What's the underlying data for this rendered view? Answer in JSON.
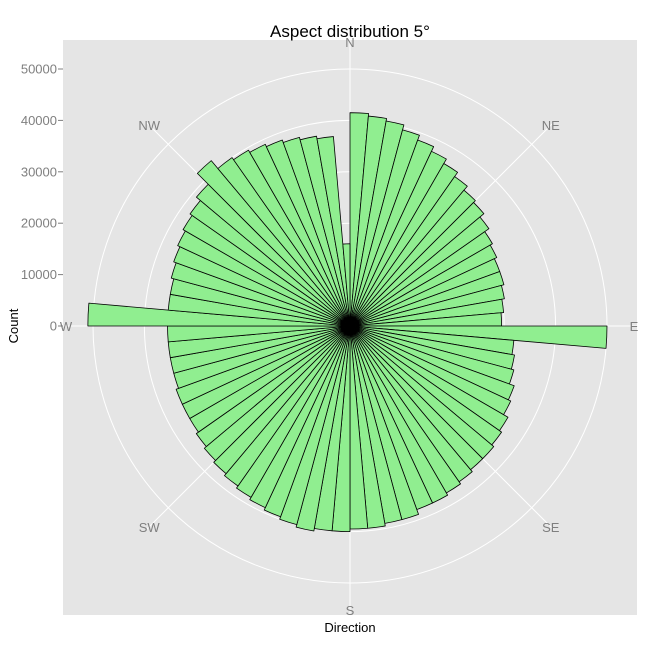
{
  "chart_data": {
    "type": "bar",
    "coord": "polar",
    "title": "Aspect distribution 5°",
    "xlabel": "Direction",
    "ylabel": "Count",
    "yticks": [
      0,
      10000,
      20000,
      30000,
      40000,
      50000
    ],
    "ytick_labels": [
      "0",
      "10000",
      "20000",
      "30000",
      "40000",
      "50000"
    ],
    "ylim": [
      0,
      56000
    ],
    "directions": [
      "N",
      "NE",
      "E",
      "SE",
      "S",
      "SW",
      "W",
      "NW"
    ],
    "direction_angles": [
      0,
      45,
      90,
      135,
      180,
      225,
      270,
      315
    ],
    "bin_width_deg": 5,
    "bin_starts_deg": [
      0,
      5,
      10,
      15,
      20,
      25,
      30,
      35,
      40,
      45,
      50,
      55,
      60,
      65,
      70,
      75,
      80,
      85,
      90,
      95,
      100,
      105,
      110,
      115,
      120,
      125,
      130,
      135,
      140,
      145,
      150,
      155,
      160,
      165,
      170,
      175,
      180,
      185,
      190,
      195,
      200,
      205,
      210,
      215,
      220,
      225,
      230,
      235,
      240,
      245,
      250,
      255,
      260,
      265,
      270,
      275,
      280,
      285,
      290,
      295,
      300,
      305,
      310,
      315,
      320,
      325,
      330,
      335,
      340,
      345,
      350,
      355
    ],
    "values": [
      41500,
      41000,
      40500,
      39500,
      38500,
      37500,
      36500,
      35500,
      34500,
      34000,
      33000,
      32000,
      31500,
      31000,
      31000,
      30500,
      30000,
      29500,
      50000,
      32000,
      32500,
      33000,
      34000,
      34500,
      35500,
      36000,
      36500,
      36500,
      37000,
      37500,
      38000,
      38000,
      39000,
      39000,
      39500,
      39500,
      40000,
      40000,
      40500,
      40000,
      39500,
      39000,
      38500,
      38000,
      37500,
      37000,
      36500,
      36000,
      36000,
      36000,
      35500,
      35500,
      35500,
      35500,
      51000,
      35500,
      35500,
      36000,
      36500,
      37000,
      37500,
      38000,
      39000,
      42000,
      40000,
      39500,
      39000,
      38500,
      38000,
      37500,
      37000,
      16000
    ],
    "series": [
      {
        "name": "",
        "color": "#90ee90"
      }
    ],
    "colors": {
      "panel": "#e5e5e5",
      "grid": "#ffffff",
      "bar_fill": "#90ee90",
      "bar_stroke": "#000000"
    },
    "grid": true,
    "legend": "none"
  }
}
